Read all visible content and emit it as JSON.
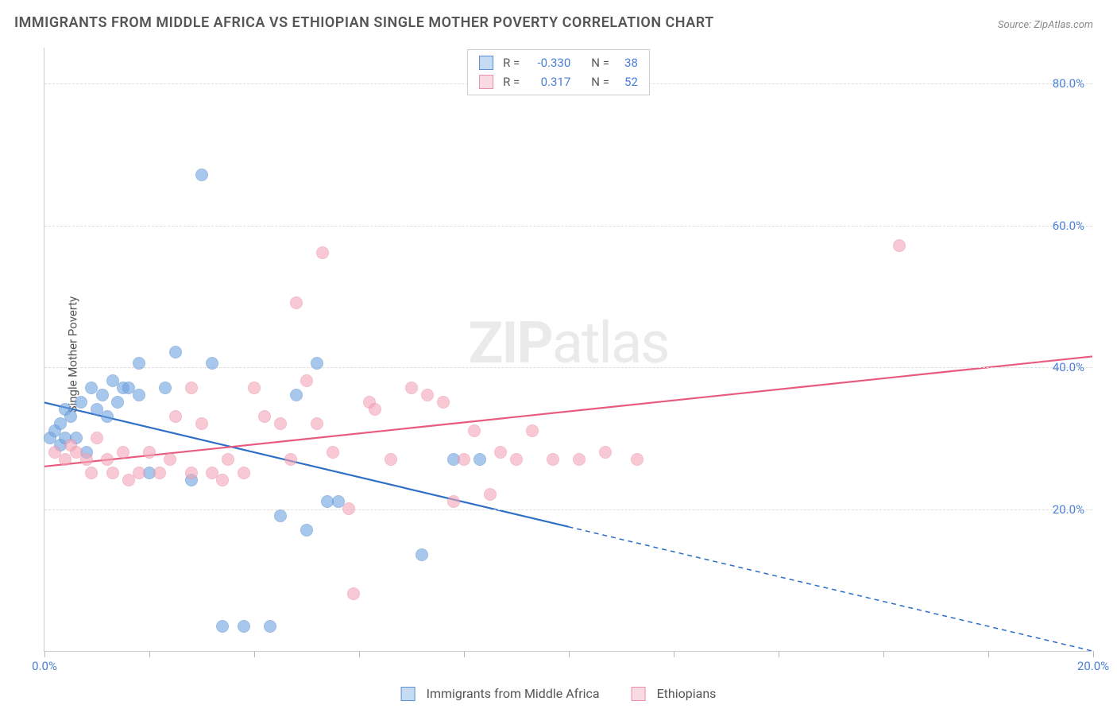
{
  "title": "IMMIGRANTS FROM MIDDLE AFRICA VS ETHIOPIAN SINGLE MOTHER POVERTY CORRELATION CHART",
  "source": "Source: ZipAtlas.com",
  "ylabel": "Single Mother Poverty",
  "watermark_bold": "ZIP",
  "watermark_light": "atlas",
  "chart": {
    "type": "scatter",
    "background_color": "#ffffff",
    "grid_color": "#dddddd",
    "axis_color": "#cccccc",
    "label_color": "#4a7fd6",
    "text_color": "#555555",
    "title_fontsize": 18,
    "label_fontsize": 15,
    "xlim": [
      0,
      20
    ],
    "ylim": [
      0,
      85
    ],
    "xticks": [
      0,
      2,
      4,
      6,
      8,
      10,
      12,
      14,
      16,
      18,
      20
    ],
    "xtick_labels": {
      "0": "0.0%",
      "20": "20.0%"
    },
    "ygrid": [
      20,
      40,
      60,
      80
    ],
    "ytick_labels": {
      "20": "20.0%",
      "40": "40.0%",
      "60": "60.0%",
      "80": "80.0%"
    },
    "point_radius": 8,
    "point_fill_opacity": 0.35,
    "point_stroke_opacity": 0.9,
    "line_width": 2.2
  },
  "series": [
    {
      "name": "Immigrants from Middle Africa",
      "color": "#6fa3e0",
      "stroke": "#5b8fd0",
      "line_color": "#2f6fc4",
      "R_label": "R =",
      "R": "-0.330",
      "N_label": "N =",
      "N": "38",
      "trend": {
        "x1": 0,
        "y1": 35,
        "x2_solid": 10,
        "y2_solid": 17.5,
        "x2": 20,
        "y2": 0
      },
      "points": [
        [
          0.1,
          30
        ],
        [
          0.2,
          31
        ],
        [
          0.3,
          29
        ],
        [
          0.3,
          32
        ],
        [
          0.4,
          34
        ],
        [
          0.4,
          30
        ],
        [
          0.5,
          33
        ],
        [
          0.6,
          30
        ],
        [
          0.7,
          35
        ],
        [
          0.8,
          28
        ],
        [
          0.9,
          37
        ],
        [
          1.0,
          34
        ],
        [
          1.1,
          36
        ],
        [
          1.2,
          33
        ],
        [
          1.3,
          38
        ],
        [
          1.4,
          35
        ],
        [
          1.5,
          37
        ],
        [
          1.6,
          37
        ],
        [
          1.8,
          36
        ],
        [
          1.8,
          40.5
        ],
        [
          2.0,
          25
        ],
        [
          2.3,
          37
        ],
        [
          2.5,
          42
        ],
        [
          2.8,
          24
        ],
        [
          3.0,
          67
        ],
        [
          3.2,
          40.5
        ],
        [
          3.4,
          3.5
        ],
        [
          3.8,
          3.5
        ],
        [
          4.3,
          3.5
        ],
        [
          4.5,
          19
        ],
        [
          4.8,
          36
        ],
        [
          5.0,
          17
        ],
        [
          5.2,
          40.5
        ],
        [
          5.4,
          21
        ],
        [
          5.6,
          21
        ],
        [
          7.2,
          13.5
        ],
        [
          7.8,
          27
        ],
        [
          8.3,
          27
        ]
      ]
    },
    {
      "name": "Ethiopians",
      "color": "#f4a6b8",
      "stroke": "#e891a5",
      "line_color": "#e85b7e",
      "R_label": "R =",
      "R": "0.317",
      "N_label": "N =",
      "N": "52",
      "trend": {
        "x1": 0,
        "y1": 26,
        "x2_solid": 20,
        "y2_solid": 41.5,
        "x2": 20,
        "y2": 41.5
      },
      "points": [
        [
          0.2,
          28
        ],
        [
          0.4,
          27
        ],
        [
          0.5,
          29
        ],
        [
          0.6,
          28
        ],
        [
          0.8,
          27
        ],
        [
          0.9,
          25
        ],
        [
          1.0,
          30
        ],
        [
          1.2,
          27
        ],
        [
          1.3,
          25
        ],
        [
          1.5,
          28
        ],
        [
          1.6,
          24
        ],
        [
          1.8,
          25
        ],
        [
          2.0,
          28
        ],
        [
          2.2,
          25
        ],
        [
          2.4,
          27
        ],
        [
          2.5,
          33
        ],
        [
          2.8,
          37
        ],
        [
          2.8,
          25
        ],
        [
          3.0,
          32
        ],
        [
          3.2,
          25
        ],
        [
          3.4,
          24
        ],
        [
          3.5,
          27
        ],
        [
          3.8,
          25
        ],
        [
          4.0,
          37
        ],
        [
          4.2,
          33
        ],
        [
          4.5,
          32
        ],
        [
          4.7,
          27
        ],
        [
          4.8,
          49
        ],
        [
          5.0,
          38
        ],
        [
          5.2,
          32
        ],
        [
          5.3,
          56
        ],
        [
          5.5,
          28
        ],
        [
          5.8,
          20
        ],
        [
          5.9,
          8
        ],
        [
          6.2,
          35
        ],
        [
          6.3,
          34
        ],
        [
          6.6,
          27
        ],
        [
          7.0,
          37
        ],
        [
          7.3,
          36
        ],
        [
          7.6,
          35
        ],
        [
          7.8,
          21
        ],
        [
          8.0,
          27
        ],
        [
          8.2,
          31
        ],
        [
          8.5,
          22
        ],
        [
          8.7,
          28
        ],
        [
          9.0,
          27
        ],
        [
          9.3,
          31
        ],
        [
          9.7,
          27
        ],
        [
          10.2,
          27
        ],
        [
          10.7,
          28
        ],
        [
          11.3,
          27
        ],
        [
          16.3,
          57
        ]
      ]
    }
  ]
}
